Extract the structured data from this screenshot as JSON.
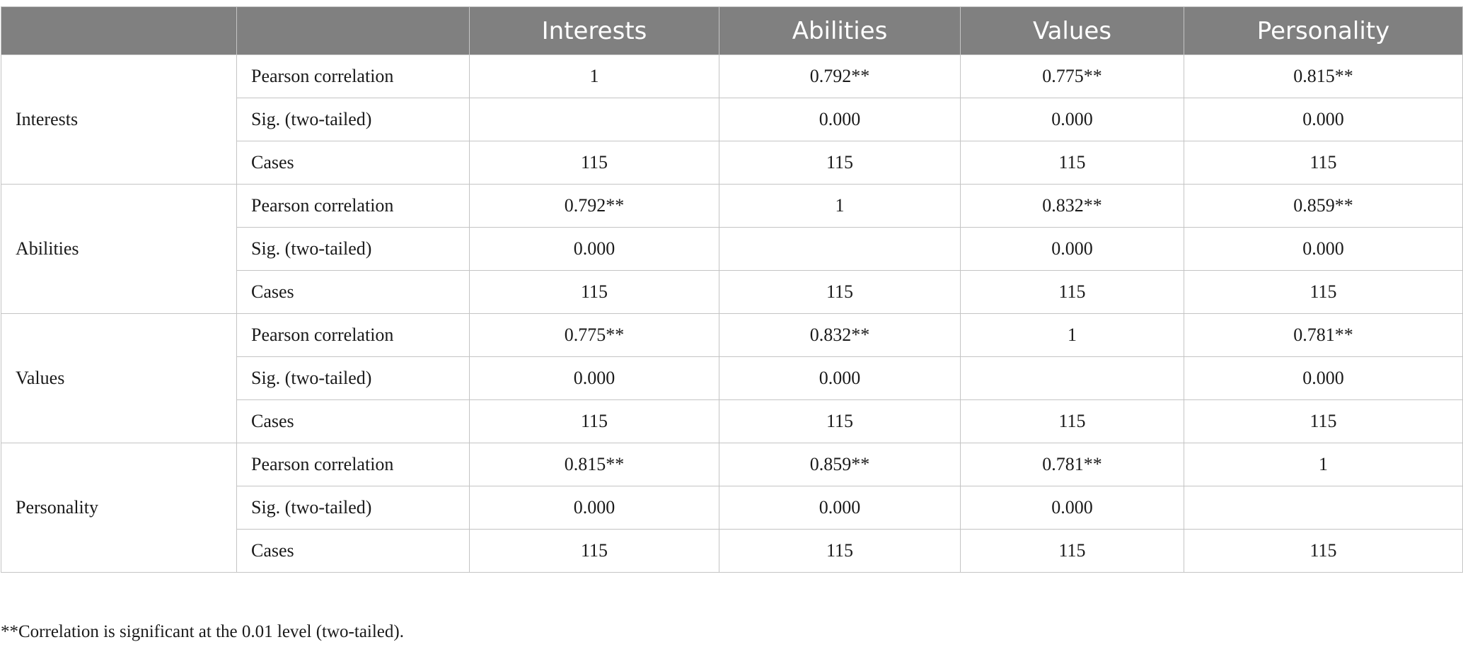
{
  "table": {
    "header": [
      "",
      "",
      "Interests",
      "Abilities",
      "Values",
      "Personality"
    ],
    "groups": [
      {
        "label": "Interests",
        "rows": [
          {
            "stat": "Pearson correlation",
            "cells": [
              "1",
              "0.792**",
              "0.775**",
              "0.815**"
            ]
          },
          {
            "stat": "Sig. (two-tailed)",
            "cells": [
              "",
              "0.000",
              "0.000",
              "0.000"
            ]
          },
          {
            "stat": "Cases",
            "cells": [
              "115",
              "115",
              "115",
              "115"
            ]
          }
        ]
      },
      {
        "label": "Abilities",
        "rows": [
          {
            "stat": "Pearson correlation",
            "cells": [
              "0.792**",
              "1",
              "0.832**",
              "0.859**"
            ]
          },
          {
            "stat": "Sig. (two-tailed)",
            "cells": [
              "0.000",
              "",
              "0.000",
              "0.000"
            ]
          },
          {
            "stat": "Cases",
            "cells": [
              "115",
              "115",
              "115",
              "115"
            ]
          }
        ]
      },
      {
        "label": "Values",
        "rows": [
          {
            "stat": "Pearson correlation",
            "cells": [
              "0.775**",
              "0.832**",
              "1",
              "0.781**"
            ]
          },
          {
            "stat": "Sig. (two-tailed)",
            "cells": [
              "0.000",
              "0.000",
              "",
              "0.000"
            ]
          },
          {
            "stat": "Cases",
            "cells": [
              "115",
              "115",
              "115",
              "115"
            ]
          }
        ]
      },
      {
        "label": "Personality",
        "rows": [
          {
            "stat": "Pearson correlation",
            "cells": [
              "0.815**",
              "0.859**",
              "0.781**",
              "1"
            ]
          },
          {
            "stat": "Sig. (two-tailed)",
            "cells": [
              "0.000",
              "0.000",
              "0.000",
              ""
            ]
          },
          {
            "stat": "Cases",
            "cells": [
              "115",
              "115",
              "115",
              "115"
            ]
          }
        ]
      }
    ]
  },
  "footnote": "**Correlation is significant at the 0.01 level (two-tailed).",
  "colors": {
    "header_bg": "#808080",
    "header_text": "#ffffff",
    "border": "#c4c4c4",
    "body_text": "#1a1a1a"
  }
}
